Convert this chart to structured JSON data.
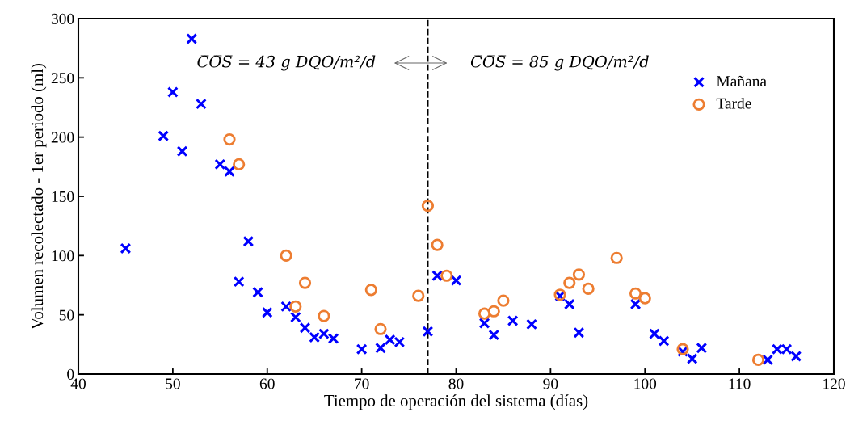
{
  "chart_data": {
    "type": "scatter",
    "xlabel": "Tiempo de operación del sistema (días)",
    "ylabel": "Volumen recolectado - 1er periodo (ml)",
    "xlim": [
      40,
      120
    ],
    "xticks": [
      40,
      50,
      60,
      70,
      80,
      90,
      100,
      110,
      120
    ],
    "ylim": [
      0,
      300
    ],
    "yticks": [
      0,
      50,
      100,
      150,
      200,
      250,
      300
    ],
    "grid": false,
    "legend": "top right",
    "series": [
      {
        "name": "Mañana",
        "color": "#0000ff",
        "marker": "cross",
        "x": [
          45,
          49,
          50,
          51,
          52,
          53,
          55,
          56,
          57,
          58,
          59,
          60,
          62,
          63,
          64,
          65,
          66,
          67,
          70,
          72,
          73,
          74,
          77,
          78,
          80,
          83,
          84,
          86,
          88,
          91,
          92,
          93,
          99,
          101,
          102,
          104,
          105,
          106,
          113,
          114,
          115,
          116
        ],
        "values": [
          106,
          201,
          238,
          188,
          283,
          228,
          177,
          171,
          78,
          112,
          69,
          52,
          57,
          48,
          39,
          31,
          34,
          30,
          21,
          22,
          29,
          27,
          36,
          83,
          79,
          43,
          33,
          45,
          42,
          66,
          59,
          35,
          59,
          34,
          28,
          19,
          13,
          22,
          12,
          21,
          21,
          15
        ]
      },
      {
        "name": "Tarde",
        "color": "#ed7d31",
        "marker": "circle",
        "x": [
          56,
          57,
          62,
          63,
          64,
          66,
          71,
          72,
          76,
          77,
          78,
          79,
          83,
          84,
          85,
          91,
          92,
          93,
          94,
          97,
          99,
          100,
          104,
          112
        ],
        "values": [
          198,
          177,
          100,
          57,
          77,
          49,
          71,
          38,
          66,
          142,
          109,
          83,
          51,
          53,
          62,
          67,
          77,
          84,
          72,
          98,
          68,
          64,
          21,
          12
        ]
      }
    ],
    "ref_lines": [
      {
        "axis": "x",
        "value": 77,
        "color": "#000000",
        "line_style": "dashed"
      }
    ],
    "annotations": [
      "C̅O̅S̅ = 43 g DQO/m²/d",
      "C̅O̅S̅ = 85 g DQO/m²/d"
    ]
  }
}
